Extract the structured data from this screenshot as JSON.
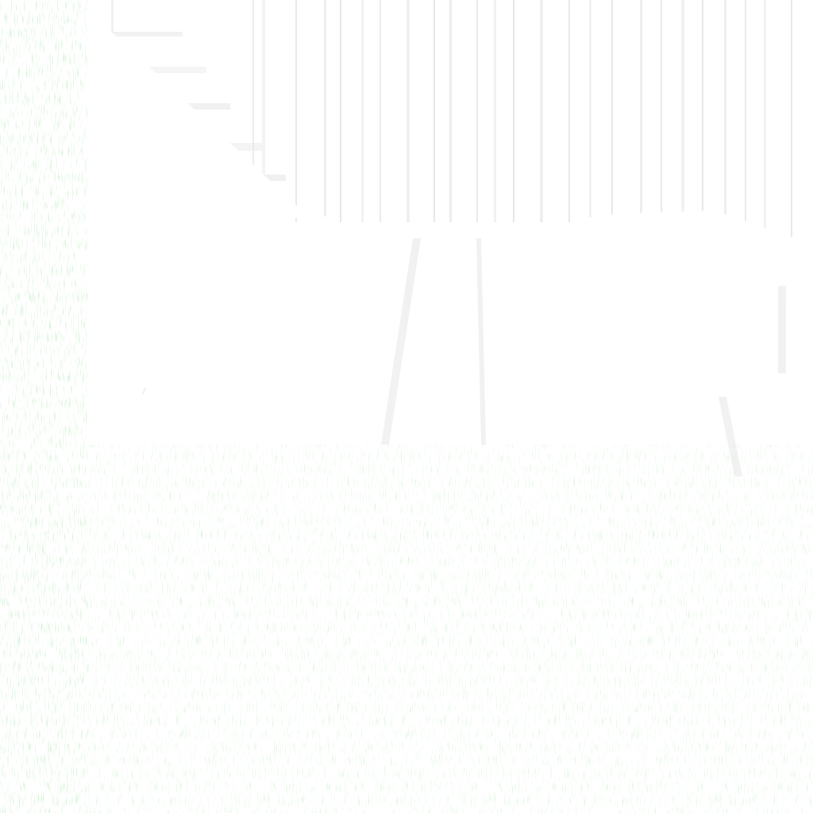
{
  "image": {
    "description_visible_text": [],
    "colors": {
      "background": "#ffffff",
      "noise_green": "#9be39b",
      "noise_gray": "#9a9a9a",
      "streak_light": "#e9e9e9",
      "streak_mid": "#d4d4d4",
      "shape_fill": "#ffffff"
    }
  }
}
